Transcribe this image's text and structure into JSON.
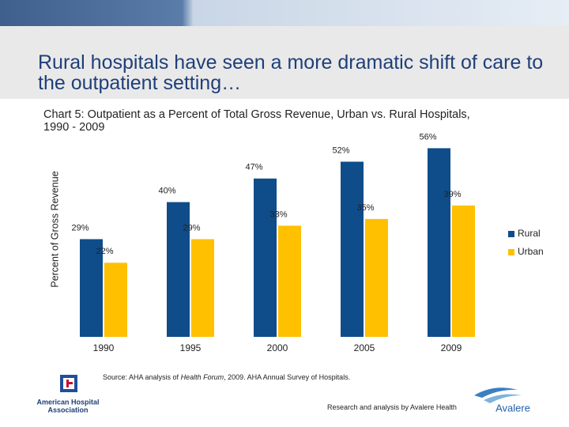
{
  "slide_title": "Rural hospitals have seen a more dramatic shift of care to the outpatient setting…",
  "chart_data": {
    "type": "bar",
    "title": "Chart 5: Outpatient as a Percent of Total Gross Revenue, Urban vs. Rural Hospitals, 1990 - 2009",
    "y_label": "Percent of Gross Revenue",
    "categories": [
      "1990",
      "1995",
      "2000",
      "2005",
      "2009"
    ],
    "series": [
      {
        "name": "Rural",
        "color": "#0f4c8a",
        "values": [
          29,
          40,
          47,
          52,
          56
        ],
        "value_labels": [
          "29%",
          "40%",
          "47%",
          "52%",
          "56%"
        ]
      },
      {
        "name": "Urban",
        "color": "#ffc000",
        "values": [
          22,
          29,
          33,
          35,
          39
        ],
        "value_labels": [
          "22%",
          "29%",
          "33%",
          "35%",
          "39%"
        ]
      }
    ],
    "legend": "right"
  },
  "source": {
    "prefix": "Source: AHA analysis of ",
    "italic": "Health Forum",
    "suffix": ", 2009. AHA Annual Survey of Hospitals."
  },
  "credit": "Research and analysis by Avalere Health",
  "logos": {
    "aha": [
      "American Hospital",
      "Association"
    ],
    "avalere": "Avalere"
  }
}
